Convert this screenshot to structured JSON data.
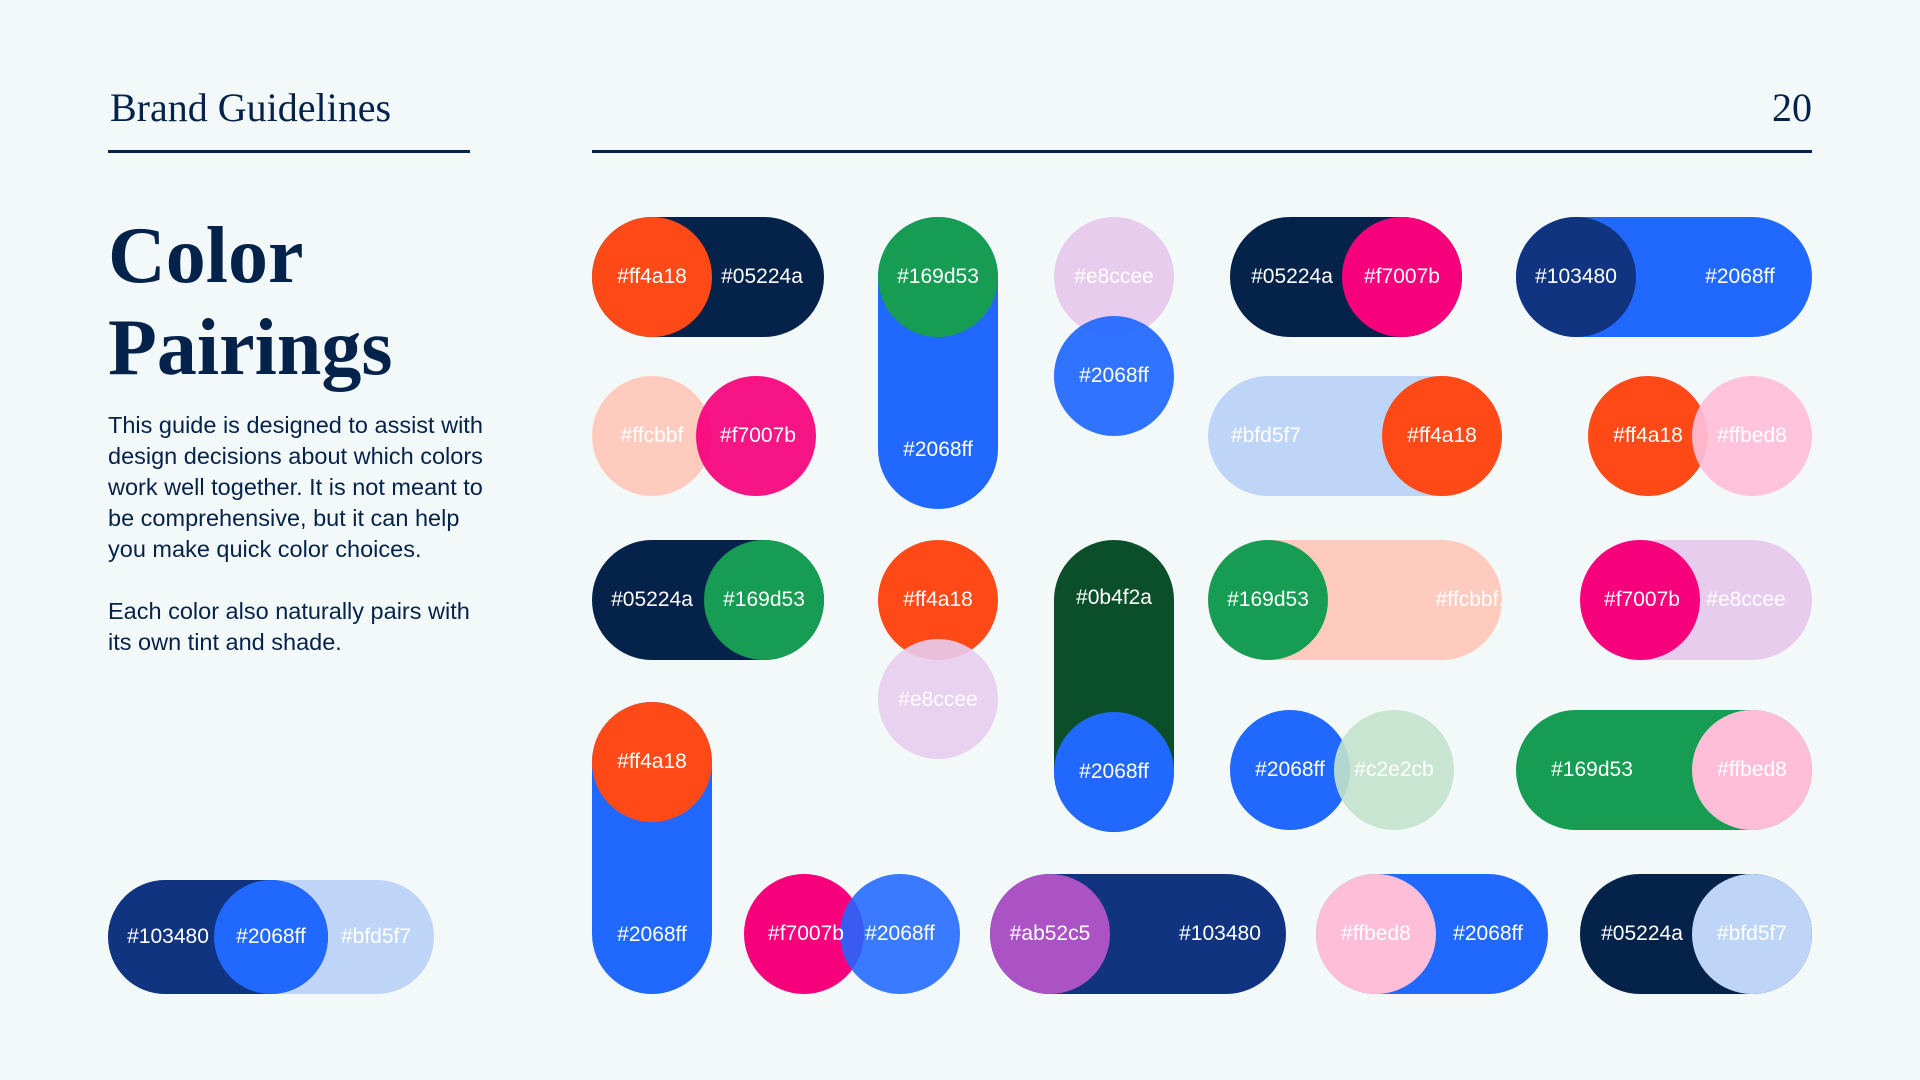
{
  "header": {
    "brand_title": "Brand Guidelines",
    "page_number": "20"
  },
  "headline": {
    "line1": "Color",
    "line2": "Pairings"
  },
  "intro": {
    "paragraph1": "This guide is designed to assist with design decisions about which colors work well together. It is not meant to be comprehensive, but it can help you make quick color choices.",
    "paragraph2": "Each color also naturally pairs with its own tint and shade."
  },
  "colors": {
    "navy": "#05224a",
    "orange": "#ff4a18",
    "blue": "#2068ff",
    "green": "#169d53",
    "magenta": "#f7007b",
    "lavender": "#e8ccee",
    "peach": "#ffcbbf",
    "light_blue": "#bfd5f7",
    "pink": "#ffbed8",
    "mint": "#c2e2cb",
    "dark_green": "#0b4f2a",
    "purple": "#ab52c5",
    "royal": "#103480",
    "background": "#f3f9f8"
  },
  "pairings": [
    {
      "labels": [
        "#ff4a18",
        "#05224a"
      ]
    },
    {
      "labels": [
        "#169d53",
        "#2068ff"
      ]
    },
    {
      "labels": [
        "#e8ccee",
        "#2068ff"
      ]
    },
    {
      "labels": [
        "#05224a",
        "#f7007b"
      ]
    },
    {
      "labels": [
        "#103480",
        "#2068ff"
      ]
    },
    {
      "labels": [
        "#ffcbbf",
        "#f7007b"
      ]
    },
    {
      "labels": [
        "#bfd5f7",
        "#ff4a18"
      ]
    },
    {
      "labels": [
        "#ff4a18",
        "#ffbed8"
      ]
    },
    {
      "labels": [
        "#05224a",
        "#169d53"
      ]
    },
    {
      "labels": [
        "#ff4a18",
        "#e8ccee"
      ]
    },
    {
      "labels": [
        "#0b4f2a",
        "#2068ff"
      ]
    },
    {
      "labels": [
        "#169d53",
        "#ffcbbf."
      ]
    },
    {
      "labels": [
        "#f7007b",
        "#e8ccee"
      ]
    },
    {
      "labels": [
        "#ff4a18",
        "#2068ff"
      ]
    },
    {
      "labels": [
        "#2068ff",
        "#c2e2cb"
      ]
    },
    {
      "labels": [
        "#169d53",
        "#ffbed8"
      ]
    },
    {
      "labels": [
        "#103480",
        "#2068ff",
        "#bfd5f7"
      ]
    },
    {
      "labels": [
        "#f7007b",
        "#2068ff"
      ]
    },
    {
      "labels": [
        "#ab52c5",
        "#103480"
      ]
    },
    {
      "labels": [
        "#ffbed8",
        "#2068ff"
      ]
    },
    {
      "labels": [
        "#05224a",
        "#bfd5f7"
      ]
    }
  ]
}
